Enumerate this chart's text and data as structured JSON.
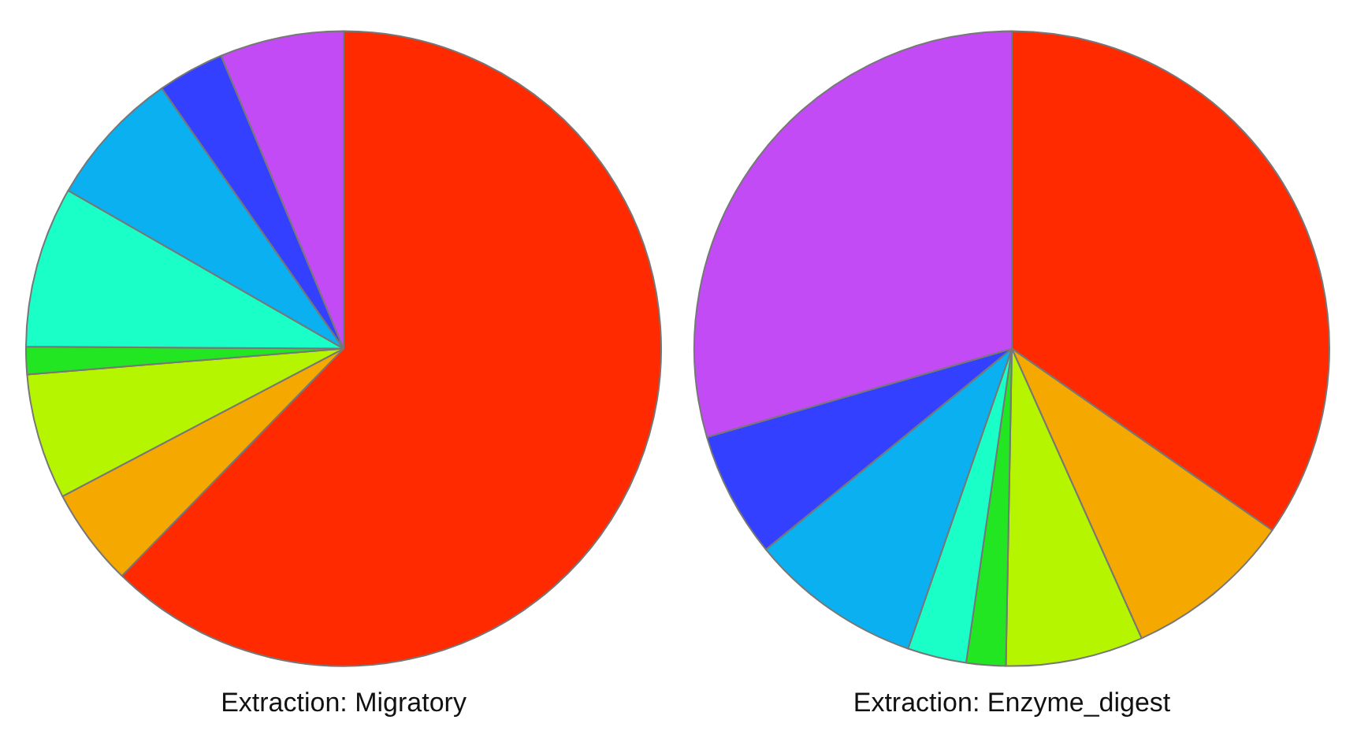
{
  "chart_data": [
    {
      "type": "pie",
      "title": "Extraction: Migratory",
      "categories": [
        null,
        null,
        null,
        null,
        null,
        null,
        null,
        null
      ],
      "values": [
        62.3,
        5,
        6.4,
        1.4,
        8.2,
        7,
        3.4,
        6.3
      ],
      "colors": [
        "#ff2a00",
        "#f5a800",
        "#b5f500",
        "#22e622",
        "#1affc8",
        "#0ab0f0",
        "#3340ff",
        "#c24bf5"
      ],
      "legend": false
    },
    {
      "type": "pie",
      "title": "Extraction: Enzyme_digest",
      "categories": [
        null,
        null,
        null,
        null,
        null,
        null,
        null,
        null
      ],
      "values": [
        34.7,
        8.6,
        7,
        2,
        3,
        8.8,
        6.4,
        29.5
      ],
      "colors": [
        "#ff2a00",
        "#f5a800",
        "#b5f500",
        "#22e622",
        "#1affc8",
        "#0ab0f0",
        "#3340ff",
        "#c24bf5"
      ],
      "legend": false
    }
  ]
}
